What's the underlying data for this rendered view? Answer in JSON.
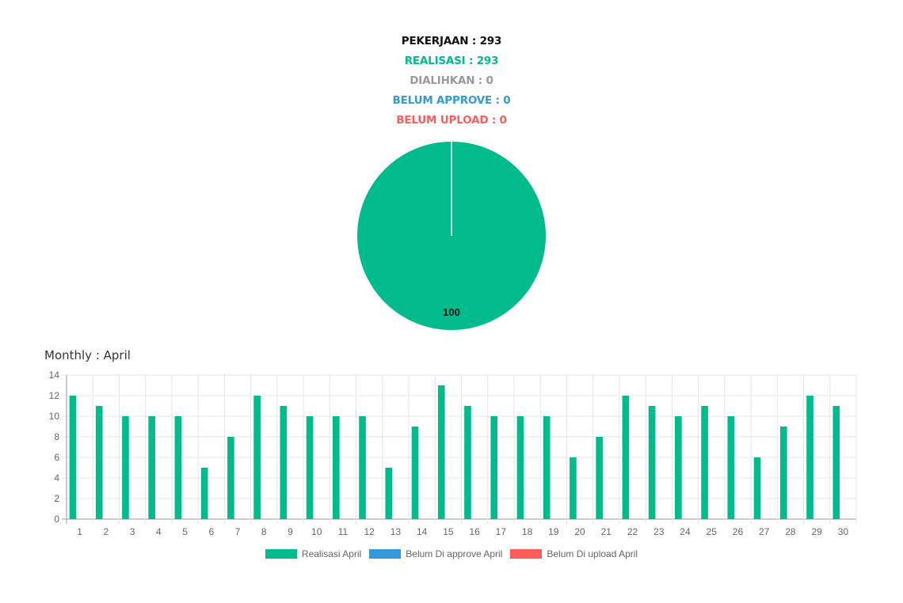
{
  "summary": {
    "pekerjaan": "PEKERJAAN : 293",
    "realisasi": "REALISASI : 293",
    "dialihkan": "DIALIHKAN : 0",
    "belum_approve": "BELUM APPROVE : 0",
    "belum_upload": "BELUM UPLOAD : 0"
  },
  "colors": {
    "pekerjaan": "#111111",
    "realisasi": "#00bc8c",
    "dialihkan": "#999999",
    "belum_approve": "#3498db",
    "belum_upload": "#ff5b5b"
  },
  "monthly_title": "Monthly : April",
  "chart_data": [
    {
      "type": "pie",
      "categories": [
        "Realisasi"
      ],
      "values": [
        100
      ],
      "data_labels": [
        "100"
      ],
      "colors": [
        "#00bc8c"
      ]
    },
    {
      "type": "bar",
      "title": "Monthly : April",
      "categories": [
        "1",
        "2",
        "3",
        "4",
        "5",
        "6",
        "7",
        "8",
        "9",
        "10",
        "11",
        "12",
        "13",
        "14",
        "15",
        "16",
        "17",
        "18",
        "19",
        "20",
        "21",
        "22",
        "23",
        "24",
        "25",
        "26",
        "27",
        "28",
        "29",
        "30"
      ],
      "series": [
        {
          "name": "Realisasi April",
          "color": "#00bc8c",
          "values": [
            12,
            11,
            10,
            10,
            10,
            5,
            8,
            12,
            11,
            10,
            10,
            10,
            5,
            9,
            13,
            11,
            10,
            10,
            10,
            6,
            8,
            12,
            11,
            10,
            11,
            10,
            6,
            9,
            12,
            11
          ]
        },
        {
          "name": "Belum Di approve April",
          "color": "#3498db",
          "values": [
            0,
            0,
            0,
            0,
            0,
            0,
            0,
            0,
            0,
            0,
            0,
            0,
            0,
            0,
            0,
            0,
            0,
            0,
            0,
            0,
            0,
            0,
            0,
            0,
            0,
            0,
            0,
            0,
            0,
            0
          ]
        },
        {
          "name": "Belum Di upload April",
          "color": "#ff5b5b",
          "values": [
            0,
            0,
            0,
            0,
            0,
            0,
            0,
            0,
            0,
            0,
            0,
            0,
            0,
            0,
            0,
            0,
            0,
            0,
            0,
            0,
            0,
            0,
            0,
            0,
            0,
            0,
            0,
            0,
            0,
            0
          ]
        }
      ],
      "ylim": [
        0,
        14
      ],
      "yticks": [
        "0",
        "2",
        "4",
        "6",
        "8",
        "10",
        "12",
        "14"
      ],
      "grid": true,
      "legend_position": "bottom"
    }
  ]
}
